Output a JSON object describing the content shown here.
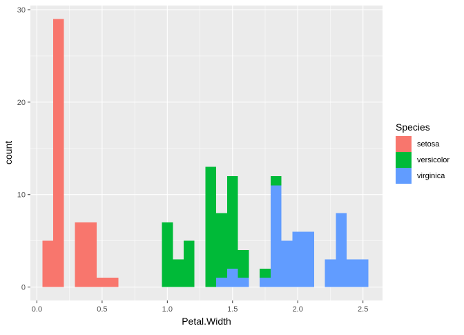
{
  "chart_data": {
    "type": "bar",
    "subtype": "stacked-histogram",
    "xlabel": "Petal.Width",
    "ylabel": "count",
    "xlim": [
      -0.05,
      2.65
    ],
    "ylim": [
      -1.45,
      30.45
    ],
    "x_ticks": [
      0.0,
      0.5,
      1.0,
      1.5,
      2.0,
      2.5
    ],
    "x_tick_labels": [
      "0.0",
      "0.5",
      "1.0",
      "1.5",
      "2.0",
      "2.5"
    ],
    "y_ticks": [
      0,
      10,
      20,
      30
    ],
    "y_tick_labels": [
      "0",
      "10",
      "20",
      "30"
    ],
    "grid": true,
    "panel_background": "#ebebeb",
    "legend": {
      "title": "Species",
      "position": "right"
    },
    "bin_width": 0.0833,
    "series": [
      {
        "name": "setosa",
        "color": "#f8766d",
        "bins": [
          {
            "x0": 0.042,
            "x1": 0.125,
            "count": 5
          },
          {
            "x0": 0.125,
            "x1": 0.208,
            "count": 29
          },
          {
            "x0": 0.292,
            "x1": 0.375,
            "count": 7
          },
          {
            "x0": 0.375,
            "x1": 0.458,
            "count": 7
          },
          {
            "x0": 0.458,
            "x1": 0.542,
            "count": 1
          },
          {
            "x0": 0.542,
            "x1": 0.625,
            "count": 1
          }
        ]
      },
      {
        "name": "versicolor",
        "color": "#00ba38",
        "bins": [
          {
            "x0": 0.958,
            "x1": 1.042,
            "count": 7
          },
          {
            "x0": 1.042,
            "x1": 1.125,
            "count": 3
          },
          {
            "x0": 1.125,
            "x1": 1.208,
            "count": 5
          },
          {
            "x0": 1.292,
            "x1": 1.375,
            "count": 13
          },
          {
            "x0": 1.375,
            "x1": 1.458,
            "count": 7
          },
          {
            "x0": 1.458,
            "x1": 1.542,
            "count": 10
          },
          {
            "x0": 1.542,
            "x1": 1.625,
            "count": 3
          },
          {
            "x0": 1.708,
            "x1": 1.792,
            "count": 1
          },
          {
            "x0": 1.792,
            "x1": 1.875,
            "count": 1
          }
        ]
      },
      {
        "name": "virginica",
        "color": "#619cff",
        "bins": [
          {
            "x0": 1.375,
            "x1": 1.458,
            "count": 1
          },
          {
            "x0": 1.458,
            "x1": 1.542,
            "count": 2
          },
          {
            "x0": 1.542,
            "x1": 1.625,
            "count": 1
          },
          {
            "x0": 1.708,
            "x1": 1.792,
            "count": 1
          },
          {
            "x0": 1.792,
            "x1": 1.875,
            "count": 11
          },
          {
            "x0": 1.875,
            "x1": 1.958,
            "count": 5
          },
          {
            "x0": 1.958,
            "x1": 2.042,
            "count": 6
          },
          {
            "x0": 2.042,
            "x1": 2.125,
            "count": 6
          },
          {
            "x0": 2.208,
            "x1": 2.292,
            "count": 3
          },
          {
            "x0": 2.292,
            "x1": 2.375,
            "count": 8
          },
          {
            "x0": 2.375,
            "x1": 2.458,
            "count": 3
          },
          {
            "x0": 2.458,
            "x1": 2.542,
            "count": 3
          }
        ]
      }
    ]
  }
}
